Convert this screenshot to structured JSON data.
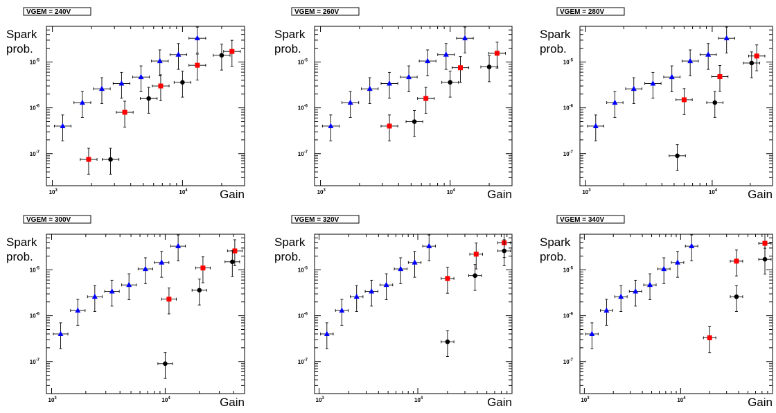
{
  "chart_data": [
    {
      "type": "scatter",
      "title": "VGEM = 240V",
      "ylabel": [
        "Spark",
        "prob."
      ],
      "xlabel": "Gain",
      "xscale": "log",
      "yscale": "log",
      "xlim": [
        900,
        30000
      ],
      "ylim": [
        2e-08,
        6e-05
      ],
      "xticks": [
        {
          "base": "10",
          "exp": "3",
          "value": 1000
        },
        {
          "base": "10",
          "exp": "4",
          "value": 10000
        }
      ],
      "yticks": [
        {
          "base": "10",
          "exp": "-7",
          "value": 1e-07
        },
        {
          "base": "10",
          "exp": "-6",
          "value": 1e-06
        },
        {
          "base": "10",
          "exp": "-5",
          "value": 1e-05
        }
      ],
      "series": [
        {
          "marker": "triangle",
          "color": "#0000ff",
          "points": [
            {
              "x": 1200,
              "y": 4e-07
            },
            {
              "x": 1700,
              "y": 1.3e-06
            },
            {
              "x": 2400,
              "y": 2.6e-06
            },
            {
              "x": 3400,
              "y": 3.4e-06
            },
            {
              "x": 4800,
              "y": 4.7e-06
            },
            {
              "x": 6700,
              "y": 1.05e-05
            },
            {
              "x": 9300,
              "y": 1.45e-05
            },
            {
              "x": 13000,
              "y": 3.3e-05
            }
          ]
        },
        {
          "marker": "square",
          "color": "#ff0000",
          "points": [
            {
              "x": 1900,
              "y": 7.5e-08
            },
            {
              "x": 3600,
              "y": 8e-07
            },
            {
              "x": 6800,
              "y": 3e-06
            },
            {
              "x": 13000,
              "y": 8.5e-06
            },
            {
              "x": 24000,
              "y": 1.7e-05
            }
          ]
        },
        {
          "marker": "circle",
          "color": "#000000",
          "points": [
            {
              "x": 2800,
              "y": 7.5e-08
            },
            {
              "x": 5500,
              "y": 1.6e-06
            },
            {
              "x": 10000,
              "y": 3.6e-06
            },
            {
              "x": 20000,
              "y": 1.4e-05
            }
          ]
        }
      ]
    },
    {
      "type": "scatter",
      "title": "VGEM = 260V",
      "ylabel": [
        "Spark",
        "prob."
      ],
      "xlabel": "Gain",
      "xscale": "log",
      "yscale": "log",
      "xlim": [
        900,
        30000
      ],
      "ylim": [
        2e-08,
        6e-05
      ],
      "xticks": [
        {
          "base": "10",
          "exp": "3",
          "value": 1000
        },
        {
          "base": "10",
          "exp": "4",
          "value": 10000
        }
      ],
      "yticks": [
        {
          "base": "10",
          "exp": "-7",
          "value": 1e-07
        },
        {
          "base": "10",
          "exp": "-6",
          "value": 1e-06
        },
        {
          "base": "10",
          "exp": "-5",
          "value": 1e-05
        }
      ],
      "series": [
        {
          "marker": "triangle",
          "color": "#0000ff",
          "points": [
            {
              "x": 1200,
              "y": 4e-07
            },
            {
              "x": 1700,
              "y": 1.3e-06
            },
            {
              "x": 2400,
              "y": 2.6e-06
            },
            {
              "x": 3400,
              "y": 3.4e-06
            },
            {
              "x": 4800,
              "y": 4.7e-06
            },
            {
              "x": 6700,
              "y": 1.05e-05
            },
            {
              "x": 9300,
              "y": 1.45e-05
            },
            {
              "x": 13000,
              "y": 3.3e-05
            }
          ]
        },
        {
          "marker": "square",
          "color": "#ff0000",
          "points": [
            {
              "x": 3400,
              "y": 4e-07
            },
            {
              "x": 6500,
              "y": 1.6e-06
            },
            {
              "x": 12000,
              "y": 7.5e-06
            },
            {
              "x": 23000,
              "y": 1.55e-05
            }
          ]
        },
        {
          "marker": "circle",
          "color": "#000000",
          "points": [
            {
              "x": 5300,
              "y": 5e-07
            },
            {
              "x": 10000,
              "y": 3.6e-06
            },
            {
              "x": 20000,
              "y": 7.8e-06
            }
          ]
        }
      ]
    },
    {
      "type": "scatter",
      "title": "VGEM = 280V",
      "ylabel": [
        "Spark",
        "prob."
      ],
      "xlabel": "Gain",
      "xscale": "log",
      "yscale": "log",
      "xlim": [
        900,
        30000
      ],
      "ylim": [
        2e-08,
        6e-05
      ],
      "xticks": [
        {
          "base": "10",
          "exp": "3",
          "value": 1000
        },
        {
          "base": "10",
          "exp": "4",
          "value": 10000
        }
      ],
      "yticks": [
        {
          "base": "10",
          "exp": "-7",
          "value": 1e-07
        },
        {
          "base": "10",
          "exp": "-6",
          "value": 1e-06
        },
        {
          "base": "10",
          "exp": "-5",
          "value": 1e-05
        }
      ],
      "series": [
        {
          "marker": "triangle",
          "color": "#0000ff",
          "points": [
            {
              "x": 1200,
              "y": 4e-07
            },
            {
              "x": 1700,
              "y": 1.3e-06
            },
            {
              "x": 2400,
              "y": 2.6e-06
            },
            {
              "x": 3400,
              "y": 3.4e-06
            },
            {
              "x": 4800,
              "y": 4.7e-06
            },
            {
              "x": 6700,
              "y": 1.05e-05
            },
            {
              "x": 9300,
              "y": 1.45e-05
            },
            {
              "x": 13000,
              "y": 3.3e-05
            }
          ]
        },
        {
          "marker": "square",
          "color": "#ff0000",
          "points": [
            {
              "x": 6000,
              "y": 1.5e-06
            },
            {
              "x": 11500,
              "y": 4.8e-06
            },
            {
              "x": 22500,
              "y": 1.35e-05
            }
          ]
        },
        {
          "marker": "circle",
          "color": "#000000",
          "points": [
            {
              "x": 5300,
              "y": 9e-08
            },
            {
              "x": 10500,
              "y": 1.3e-06
            },
            {
              "x": 20500,
              "y": 9.5e-06
            }
          ]
        }
      ]
    },
    {
      "type": "scatter",
      "title": "VGEM = 300V",
      "ylabel": [
        "Spark",
        "prob."
      ],
      "xlabel": "Gain",
      "xscale": "log",
      "yscale": "log",
      "xlim": [
        900,
        50000
      ],
      "ylim": [
        2e-08,
        6e-05
      ],
      "xticks": [
        {
          "base": "10",
          "exp": "3",
          "value": 1000
        },
        {
          "base": "10",
          "exp": "4",
          "value": 10000
        }
      ],
      "yticks": [
        {
          "base": "10",
          "exp": "-7",
          "value": 1e-07
        },
        {
          "base": "10",
          "exp": "-6",
          "value": 1e-06
        },
        {
          "base": "10",
          "exp": "-5",
          "value": 1e-05
        }
      ],
      "series": [
        {
          "marker": "triangle",
          "color": "#0000ff",
          "points": [
            {
              "x": 1200,
              "y": 4e-07
            },
            {
              "x": 1700,
              "y": 1.3e-06
            },
            {
              "x": 2400,
              "y": 2.6e-06
            },
            {
              "x": 3400,
              "y": 3.4e-06
            },
            {
              "x": 4800,
              "y": 4.7e-06
            },
            {
              "x": 6700,
              "y": 1.05e-05
            },
            {
              "x": 9300,
              "y": 1.45e-05
            },
            {
              "x": 13000,
              "y": 3.3e-05
            }
          ]
        },
        {
          "marker": "square",
          "color": "#ff0000",
          "points": [
            {
              "x": 10800,
              "y": 2.3e-06
            },
            {
              "x": 21500,
              "y": 1.1e-05
            },
            {
              "x": 41000,
              "y": 2.6e-05
            }
          ]
        },
        {
          "marker": "circle",
          "color": "#000000",
          "points": [
            {
              "x": 10000,
              "y": 9e-08
            },
            {
              "x": 20000,
              "y": 3.6e-06
            },
            {
              "x": 39000,
              "y": 1.5e-05
            }
          ]
        }
      ]
    },
    {
      "type": "scatter",
      "title": "VGEM = 320V",
      "ylabel": [
        "Spark",
        "prob."
      ],
      "xlabel": "Gain",
      "xscale": "log",
      "yscale": "log",
      "xlim": [
        900,
        90000
      ],
      "ylim": [
        2e-08,
        6e-05
      ],
      "xticks": [
        {
          "base": "10",
          "exp": "3",
          "value": 1000
        },
        {
          "base": "10",
          "exp": "4",
          "value": 10000
        }
      ],
      "yticks": [
        {
          "base": "10",
          "exp": "-7",
          "value": 1e-07
        },
        {
          "base": "10",
          "exp": "-6",
          "value": 1e-06
        },
        {
          "base": "10",
          "exp": "-5",
          "value": 1e-05
        }
      ],
      "series": [
        {
          "marker": "triangle",
          "color": "#0000ff",
          "points": [
            {
              "x": 1200,
              "y": 4e-07
            },
            {
              "x": 1700,
              "y": 1.3e-06
            },
            {
              "x": 2400,
              "y": 2.6e-06
            },
            {
              "x": 3400,
              "y": 3.4e-06
            },
            {
              "x": 4800,
              "y": 4.7e-06
            },
            {
              "x": 6700,
              "y": 1.05e-05
            },
            {
              "x": 9300,
              "y": 1.45e-05
            },
            {
              "x": 13000,
              "y": 3.3e-05
            }
          ]
        },
        {
          "marker": "square",
          "color": "#ff0000",
          "points": [
            {
              "x": 20000,
              "y": 6.5e-06
            },
            {
              "x": 39000,
              "y": 2.2e-05
            },
            {
              "x": 75000,
              "y": 3.9e-05
            }
          ]
        },
        {
          "marker": "circle",
          "color": "#000000",
          "points": [
            {
              "x": 20000,
              "y": 2.7e-07
            },
            {
              "x": 38000,
              "y": 7.5e-06
            },
            {
              "x": 75000,
              "y": 2.6e-05
            }
          ]
        }
      ]
    },
    {
      "type": "scatter",
      "title": "VGEM = 340V",
      "ylabel": [
        "Spark",
        "prob."
      ],
      "xlabel": "Gain",
      "xscale": "log",
      "yscale": "log",
      "xlim": [
        900,
        90000
      ],
      "ylim": [
        2e-08,
        6e-05
      ],
      "xticks": [
        {
          "base": "10",
          "exp": "3",
          "value": 1000
        },
        {
          "base": "10",
          "exp": "4",
          "value": 10000
        }
      ],
      "yticks": [
        {
          "base": "10",
          "exp": "-7",
          "value": 1e-07
        },
        {
          "base": "10",
          "exp": "-6",
          "value": 1e-06
        },
        {
          "base": "10",
          "exp": "-5",
          "value": 1e-05
        }
      ],
      "series": [
        {
          "marker": "triangle",
          "color": "#0000ff",
          "points": [
            {
              "x": 1200,
              "y": 4e-07
            },
            {
              "x": 1700,
              "y": 1.3e-06
            },
            {
              "x": 2400,
              "y": 2.6e-06
            },
            {
              "x": 3400,
              "y": 3.4e-06
            },
            {
              "x": 4800,
              "y": 4.7e-06
            },
            {
              "x": 6700,
              "y": 1.05e-05
            },
            {
              "x": 9300,
              "y": 1.45e-05
            },
            {
              "x": 13000,
              "y": 3.3e-05
            }
          ]
        },
        {
          "marker": "square",
          "color": "#ff0000",
          "points": [
            {
              "x": 20000,
              "y": 3.3e-07
            },
            {
              "x": 38000,
              "y": 1.55e-05
            },
            {
              "x": 75000,
              "y": 3.8e-05
            }
          ]
        },
        {
          "marker": "circle",
          "color": "#000000",
          "points": [
            {
              "x": 38000,
              "y": 2.6e-06
            },
            {
              "x": 75000,
              "y": 1.7e-05
            }
          ]
        }
      ]
    }
  ]
}
